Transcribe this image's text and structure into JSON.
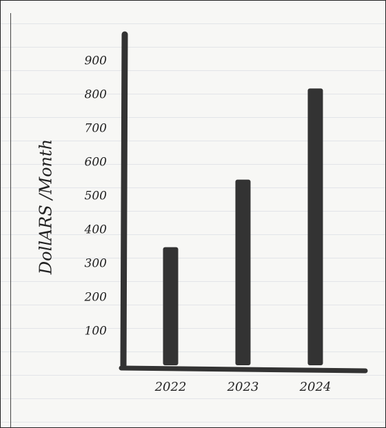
{
  "chart_data": {
    "type": "bar",
    "y_label": "DollARS /Month",
    "categories": [
      "2022",
      "2023",
      "2024"
    ],
    "values": [
      350,
      550,
      820
    ],
    "color": "#333333",
    "ylim": [
      0,
      980
    ],
    "yticks": [
      100,
      200,
      300,
      400,
      500,
      600,
      700,
      800,
      900
    ],
    "grid": false
  }
}
